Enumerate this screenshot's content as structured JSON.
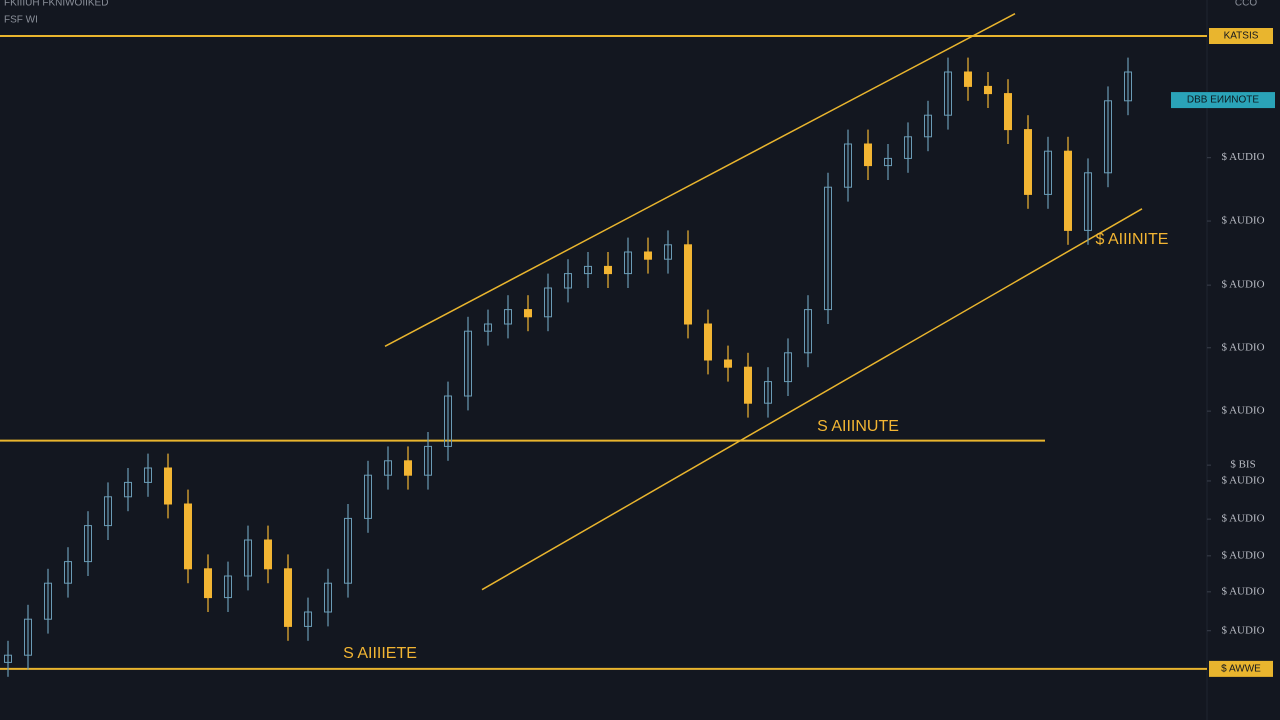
{
  "chart_data": {
    "type": "candlestick",
    "header": [
      "FKIIIUH FKNIWOIIKED",
      "FSF WI"
    ],
    "corner_label": "CCO",
    "xlim": [
      -0.4,
      60.2
    ],
    "ylim": [
      0,
      100
    ],
    "yticks": [
      {
        "value": 78.1,
        "label": "$ AUDIO"
      },
      {
        "value": 69.3,
        "label": "$ AUDIO"
      },
      {
        "value": 60.4,
        "label": "$ AUDIO"
      },
      {
        "value": 51.7,
        "label": "$ AUDIO"
      },
      {
        "value": 42.9,
        "label": "$ AUDIO"
      },
      {
        "value": 35.4,
        "label": "$ BIS"
      },
      {
        "value": 33.2,
        "label": "$ AUDIO"
      },
      {
        "value": 27.9,
        "label": "$ AUDIO"
      },
      {
        "value": 22.8,
        "label": "$ AUDIO"
      },
      {
        "value": 17.8,
        "label": "$ AUDIO"
      },
      {
        "value": 12.4,
        "label": "$ AUDIO"
      }
    ],
    "up_color": "#6a9bb5",
    "down_color": "#f2b533",
    "open": [
      8,
      9,
      14,
      19,
      22,
      27,
      31,
      33,
      35,
      30,
      21,
      17,
      20,
      25,
      21,
      13,
      15,
      19,
      28,
      34,
      36,
      34,
      38,
      45,
      54,
      55,
      57,
      56,
      60,
      62,
      63,
      62,
      65,
      64,
      66,
      55,
      50,
      49,
      44,
      47,
      51,
      57,
      74,
      80,
      77,
      78,
      81,
      84,
      90,
      88,
      87,
      82,
      73,
      79,
      68,
      76,
      86
    ],
    "high": [
      11,
      16,
      21,
      24,
      29,
      33,
      35,
      37,
      37,
      32,
      23,
      22,
      27,
      27,
      23,
      17,
      21,
      30,
      36,
      38,
      38,
      40,
      47,
      56,
      57,
      59,
      59,
      62,
      64,
      65,
      65,
      67,
      67,
      68,
      68,
      57,
      52,
      51,
      49,
      53,
      59,
      76,
      82,
      82,
      80,
      83,
      86,
      92,
      92,
      90,
      89,
      84,
      81,
      81,
      78,
      88,
      92
    ],
    "low": [
      6,
      7,
      12,
      17,
      20,
      25,
      29,
      31,
      28,
      19,
      15,
      15,
      18,
      19,
      11,
      11,
      13,
      17,
      26,
      32,
      32,
      32,
      36,
      43,
      52,
      53,
      54,
      54,
      58,
      60,
      60,
      60,
      62,
      62,
      53,
      48,
      47,
      42,
      42,
      45,
      49,
      55,
      72,
      75,
      75,
      76,
      79,
      82,
      86,
      85,
      80,
      71,
      71,
      66,
      66,
      74,
      84
    ],
    "close": [
      9,
      14,
      19,
      22,
      27,
      31,
      33,
      35,
      30,
      21,
      17,
      20,
      25,
      21,
      13,
      15,
      19,
      28,
      34,
      36,
      34,
      38,
      45,
      54,
      55,
      57,
      56,
      60,
      62,
      63,
      62,
      65,
      64,
      66,
      55,
      50,
      49,
      44,
      47,
      51,
      57,
      74,
      80,
      77,
      78,
      81,
      84,
      90,
      88,
      87,
      82,
      73,
      79,
      68,
      76,
      86,
      90
    ],
    "line_color": "#e9b52e",
    "hlines": [
      {
        "value": 95,
        "label": "KATSIS"
      },
      {
        "value": 38.8
      },
      {
        "value": 7.1,
        "label": "$ AWWE"
      }
    ],
    "price_tag": {
      "value": 86.1,
      "label": "DBB ЕИИNOTE",
      "color": "#2aa3b8"
    },
    "trendlines": [
      {
        "x": [
          18.85,
          50.35
        ],
        "values": [
          51.9,
          98.1
        ]
      },
      {
        "x": [
          23.7,
          56.7
        ],
        "values": [
          18.1,
          71.0
        ]
      }
    ],
    "annotations": [
      "S AIIINUTE",
      "$ AIIINITE",
      "S AIIIIETE"
    ]
  }
}
